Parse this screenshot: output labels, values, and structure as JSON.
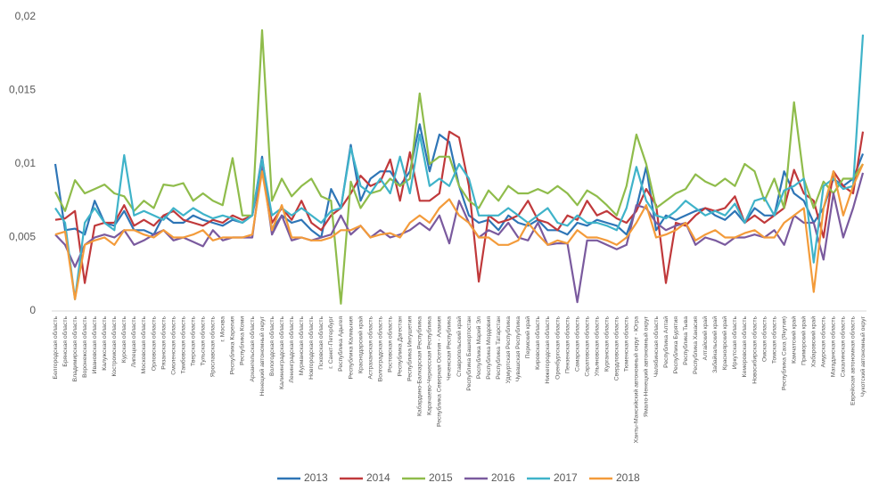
{
  "chart_data": {
    "type": "line",
    "categories": [
      "Белгородская область",
      "Брянская область",
      "Владимирская область",
      "Воронежская область",
      "Ивановская область",
      "Калужская область",
      "Костромская область",
      "Курская область",
      "Липецкая область",
      "Московская область",
      "Орловская область",
      "Рязанская область",
      "Смоленская область",
      "Тамбовская область",
      "Тверская область",
      "Тульская область",
      "Ярославская область",
      "г. Москва",
      "Республика Карелия",
      "Республика Коми",
      "Архангельская область",
      "Ненецкий автономный округ",
      "Вологодская область",
      "Калининградская область",
      "Ленинградская область",
      "Мурманская область",
      "Новгородская область",
      "Псковская область",
      "г. Санкт-Петербург",
      "Республика Адыгея",
      "Республика Калмыкия",
      "Краснодарский край",
      "Астраханская область",
      "Волгоградская область",
      "Ростовская область",
      "Республика Дагестан",
      "Республика Ингушетия",
      "Кабардино-Балкарская Республика",
      "Карачаево-Черкесская Республика",
      "Республика Северная Осетия - Алания",
      "Чеченская Республика",
      "Ставропольский край",
      "Республика Башкортостан",
      "Республика Марий Эл",
      "Республика Мордовия",
      "Республика Татарстан",
      "Удмуртская Республика",
      "Чувашская Республика",
      "Пермский край",
      "Кировская область",
      "Нижегородская область",
      "Оренбургская область",
      "Пензенская область",
      "Самарская область",
      "Саратовская область",
      "Ульяновская область",
      "Курганская область",
      "Свердловская область",
      "Тюменская область",
      "Ханты-Мансийский автономный округ - Югра",
      "Ямало-Ненецкий автономный округ",
      "Челябинская область",
      "Республика Алтай",
      "Республика Бурятия",
      "Республика Тыва",
      "Республика Хакасия",
      "Алтайский край",
      "Забайкальский край",
      "Красноярский край",
      "Иркутская область",
      "Кемеровская область",
      "Новосибирская область",
      "Омская область",
      "Томская область",
      "Республика Саха (Якутия)",
      "Камчатский край",
      "Приморский край",
      "Хабаровский край",
      "Амурская область",
      "Магаданская область",
      "Сахалинская область",
      "Еврейская автономная область",
      "Чукотский автономный округ"
    ],
    "series": [
      {
        "name": "2013",
        "color": "#2e75b6",
        "values": [
          0.01,
          0.0055,
          0.0056,
          0.0052,
          0.0075,
          0.006,
          0.0058,
          0.0068,
          0.0055,
          0.0055,
          0.0052,
          0.0065,
          0.006,
          0.006,
          0.0065,
          0.0062,
          0.006,
          0.0058,
          0.0062,
          0.006,
          0.0065,
          0.0105,
          0.0055,
          0.0065,
          0.006,
          0.0062,
          0.0055,
          0.005,
          0.0083,
          0.007,
          0.0113,
          0.0075,
          0.009,
          0.0095,
          0.0095,
          0.0085,
          0.0095,
          0.0127,
          0.0095,
          0.012,
          0.0115,
          0.0085,
          0.0065,
          0.006,
          0.0062,
          0.0055,
          0.0065,
          0.006,
          0.0058,
          0.0062,
          0.0055,
          0.0055,
          0.0052,
          0.006,
          0.0058,
          0.0062,
          0.006,
          0.0058,
          0.0052,
          0.007,
          0.0098,
          0.0055,
          0.0065,
          0.0062,
          0.0065,
          0.0068,
          0.007,
          0.0065,
          0.0062,
          0.0068,
          0.006,
          0.007,
          0.0065,
          0.0065,
          0.0095,
          0.008,
          0.0075,
          0.006,
          0.007,
          0.009,
          0.0085,
          0.009,
          0.0107
        ]
      },
      {
        "name": "2014",
        "color": "#c0393b",
        "values": [
          0.0062,
          0.0063,
          0.0068,
          0.0019,
          0.0058,
          0.006,
          0.006,
          0.0072,
          0.0058,
          0.0062,
          0.0058,
          0.0065,
          0.0068,
          0.0062,
          0.006,
          0.0058,
          0.0062,
          0.006,
          0.0065,
          0.0062,
          0.0065,
          0.0098,
          0.006,
          0.007,
          0.0062,
          0.0075,
          0.006,
          0.0055,
          0.0065,
          0.007,
          0.008,
          0.0092,
          0.0085,
          0.0088,
          0.0103,
          0.0075,
          0.0108,
          0.0075,
          0.0075,
          0.008,
          0.0122,
          0.0118,
          0.0085,
          0.002,
          0.0065,
          0.006,
          0.0062,
          0.0065,
          0.0075,
          0.0062,
          0.006,
          0.0055,
          0.0065,
          0.0062,
          0.0075,
          0.0065,
          0.0068,
          0.0063,
          0.006,
          0.0068,
          0.0083,
          0.0072,
          0.0019,
          0.006,
          0.0058,
          0.0065,
          0.007,
          0.0068,
          0.007,
          0.0078,
          0.006,
          0.0065,
          0.006,
          0.0065,
          0.007,
          0.0096,
          0.008,
          0.0075,
          0.005,
          0.0095,
          0.0085,
          0.008,
          0.0122
        ]
      },
      {
        "name": "2015",
        "color": "#8fbc4b",
        "values": [
          0.0081,
          0.0068,
          0.0089,
          0.008,
          0.0083,
          0.0086,
          0.008,
          0.0078,
          0.0068,
          0.0075,
          0.007,
          0.0086,
          0.0085,
          0.0087,
          0.0075,
          0.008,
          0.0075,
          0.0072,
          0.0104,
          0.0065,
          0.0065,
          0.0191,
          0.0075,
          0.009,
          0.0078,
          0.0085,
          0.009,
          0.0078,
          0.0075,
          0.0005,
          0.0088,
          0.007,
          0.008,
          0.0082,
          0.009,
          0.0085,
          0.009,
          0.0148,
          0.01,
          0.0105,
          0.0105,
          0.0085,
          0.0075,
          0.007,
          0.0082,
          0.0075,
          0.0085,
          0.008,
          0.008,
          0.0083,
          0.008,
          0.0085,
          0.008,
          0.0072,
          0.0082,
          0.0078,
          0.0072,
          0.0065,
          0.0085,
          0.012,
          0.01,
          0.007,
          0.0075,
          0.008,
          0.0083,
          0.0093,
          0.0088,
          0.0085,
          0.009,
          0.0085,
          0.01,
          0.0095,
          0.0075,
          0.009,
          0.007,
          0.0142,
          0.009,
          0.007,
          0.0088,
          0.008,
          0.009,
          0.009,
          0.01
        ]
      },
      {
        "name": "2016",
        "color": "#7a5a9e",
        "values": [
          0.0052,
          0.0045,
          0.003,
          0.0045,
          0.005,
          0.0052,
          0.005,
          0.0055,
          0.0045,
          0.0048,
          0.0052,
          0.0055,
          0.0048,
          0.005,
          0.0047,
          0.0044,
          0.0055,
          0.0048,
          0.005,
          0.005,
          0.005,
          0.01,
          0.0052,
          0.0065,
          0.0048,
          0.005,
          0.0048,
          0.005,
          0.0052,
          0.0065,
          0.0052,
          0.0058,
          0.005,
          0.0055,
          0.005,
          0.0052,
          0.0055,
          0.006,
          0.0055,
          0.0065,
          0.0046,
          0.0075,
          0.006,
          0.005,
          0.0055,
          0.0052,
          0.006,
          0.005,
          0.0048,
          0.006,
          0.0045,
          0.0046,
          0.0046,
          0.0006,
          0.0048,
          0.0048,
          0.0045,
          0.0042,
          0.0045,
          0.0072,
          0.007,
          0.006,
          0.0055,
          0.0058,
          0.006,
          0.0045,
          0.005,
          0.0048,
          0.0045,
          0.005,
          0.005,
          0.0052,
          0.005,
          0.0055,
          0.0045,
          0.0065,
          0.006,
          0.006,
          0.0035,
          0.008,
          0.005,
          0.007,
          0.0094
        ]
      },
      {
        "name": "2017",
        "color": "#3fb3c9",
        "values": [
          0.007,
          0.006,
          0.0008,
          0.006,
          0.007,
          0.006,
          0.0055,
          0.0106,
          0.0065,
          0.0068,
          0.0065,
          0.0062,
          0.007,
          0.0065,
          0.007,
          0.0066,
          0.0063,
          0.0065,
          0.0063,
          0.006,
          0.0065,
          0.0103,
          0.0065,
          0.007,
          0.0065,
          0.007,
          0.0065,
          0.006,
          0.0068,
          0.007,
          0.0111,
          0.0085,
          0.008,
          0.009,
          0.008,
          0.0105,
          0.008,
          0.012,
          0.0085,
          0.009,
          0.0085,
          0.01,
          0.009,
          0.0065,
          0.0065,
          0.0065,
          0.007,
          0.0065,
          0.006,
          0.0065,
          0.007,
          0.006,
          0.0058,
          0.0065,
          0.006,
          0.006,
          0.0058,
          0.0055,
          0.007,
          0.0098,
          0.0075,
          0.0065,
          0.0063,
          0.0068,
          0.0075,
          0.007,
          0.0065,
          0.0068,
          0.0065,
          0.0073,
          0.006,
          0.0075,
          0.0077,
          0.0065,
          0.0082,
          0.0085,
          0.009,
          0.0033,
          0.0085,
          0.009,
          0.0083,
          0.0085,
          0.0188
        ]
      },
      {
        "name": "2018",
        "color": "#f39b3a",
        "values": [
          0.0052,
          0.0054,
          0.0008,
          0.0045,
          0.0048,
          0.005,
          0.0045,
          0.0055,
          0.0055,
          0.0052,
          0.005,
          0.0055,
          0.005,
          0.005,
          0.0052,
          0.0055,
          0.0048,
          0.005,
          0.005,
          0.005,
          0.0052,
          0.0095,
          0.0055,
          0.0072,
          0.005,
          0.005,
          0.0048,
          0.0048,
          0.005,
          0.0055,
          0.0055,
          0.0058,
          0.005,
          0.0052,
          0.0053,
          0.005,
          0.006,
          0.0065,
          0.006,
          0.007,
          0.0076,
          0.0065,
          0.006,
          0.005,
          0.005,
          0.0045,
          0.0045,
          0.0048,
          0.006,
          0.0052,
          0.0045,
          0.0048,
          0.0046,
          0.0055,
          0.005,
          0.005,
          0.0048,
          0.0045,
          0.005,
          0.006,
          0.0072,
          0.005,
          0.0052,
          0.0055,
          0.006,
          0.0048,
          0.0052,
          0.0055,
          0.005,
          0.005,
          0.0053,
          0.0055,
          0.005,
          0.005,
          0.006,
          0.0065,
          0.007,
          0.0013,
          0.007,
          0.0095,
          0.0065,
          0.0085,
          0.01
        ]
      }
    ],
    "ylim": [
      0,
      0.02
    ],
    "yticks": [
      0,
      {
        "value": 0.005,
        "label": "0,005"
      },
      {
        "value": 0.01,
        "label": "0,01"
      },
      {
        "value": 0.015,
        "label": "0,015"
      },
      {
        "value": 0.02,
        "label": "0,02"
      }
    ],
    "grid": false,
    "legend": "bottom"
  }
}
